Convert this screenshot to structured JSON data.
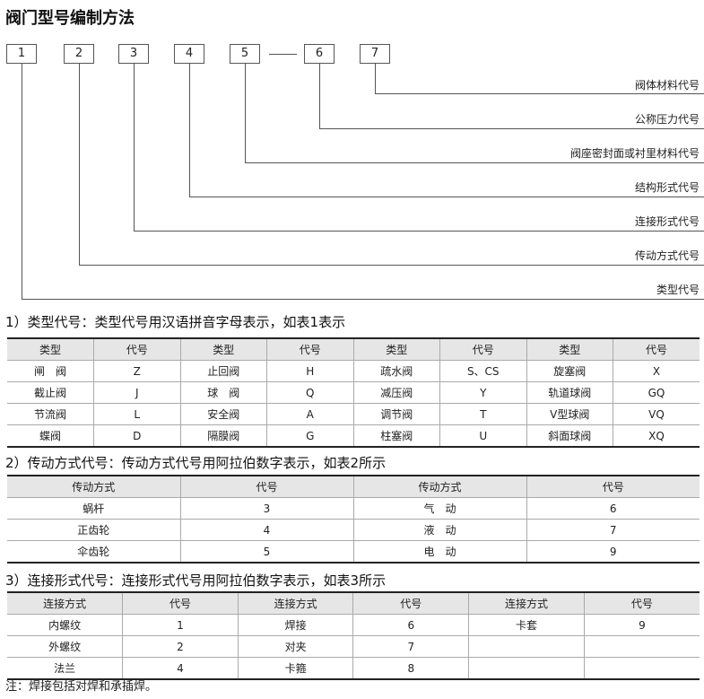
{
  "title": "阀门型号编制方法",
  "diagram": {
    "boxes": [
      "1",
      "2",
      "3",
      "4",
      "5",
      "6",
      "7"
    ],
    "labels": [
      "阀体材料代号",
      "公称压力代号",
      "阀座密封面或衬里材料代号",
      "结构形式代号",
      "连接形式代号",
      "传动方式代号",
      "类型代号"
    ]
  },
  "section1": {
    "heading": "1）类型代号：类型代号用汉语拼音字母表示，如表1表示",
    "headers": [
      "类型",
      "代号",
      "类型",
      "代号",
      "类型",
      "代号",
      "类型",
      "代号"
    ],
    "rows": [
      [
        "闸　阀",
        "Z",
        "止回阀",
        "H",
        "疏水阀",
        "S、CS",
        "旋塞阀",
        "X"
      ],
      [
        "截止阀",
        "J",
        "球　阀",
        "Q",
        "减压阀",
        "Y",
        "轨道球阀",
        "GQ"
      ],
      [
        "节流阀",
        "L",
        "安全阀",
        "A",
        "调节阀",
        "T",
        "V型球阀",
        "VQ"
      ],
      [
        "蝶阀",
        "D",
        "隔膜阀",
        "G",
        "柱塞阀",
        "U",
        "斜面球阀",
        "XQ"
      ]
    ]
  },
  "section2": {
    "heading": "2）传动方式代号：传动方式代号用阿拉伯数字表示，如表2所示",
    "headers": [
      "传动方式",
      "代号",
      "传动方式",
      "代号"
    ],
    "rows": [
      [
        "蜗杆",
        "3",
        "气　动",
        "6"
      ],
      [
        "正齿轮",
        "4",
        "液　动",
        "7"
      ],
      [
        "伞齿轮",
        "5",
        "电　动",
        "9"
      ]
    ]
  },
  "section3": {
    "heading": "3）连接形式代号：连接形式代号用阿拉伯数字表示，如表3所示",
    "headers": [
      "连接方式",
      "代号",
      "连接方式",
      "代号",
      "连接方式",
      "代号"
    ],
    "rows": [
      [
        "内螺纹",
        "1",
        "焊接",
        "6",
        "卡套",
        "9"
      ],
      [
        "外螺纹",
        "2",
        "对夹",
        "7",
        "",
        ""
      ],
      [
        "法兰",
        "4",
        "卡箍",
        "8",
        "",
        ""
      ]
    ]
  },
  "note": "注：焊接包括对焊和承插焊。"
}
